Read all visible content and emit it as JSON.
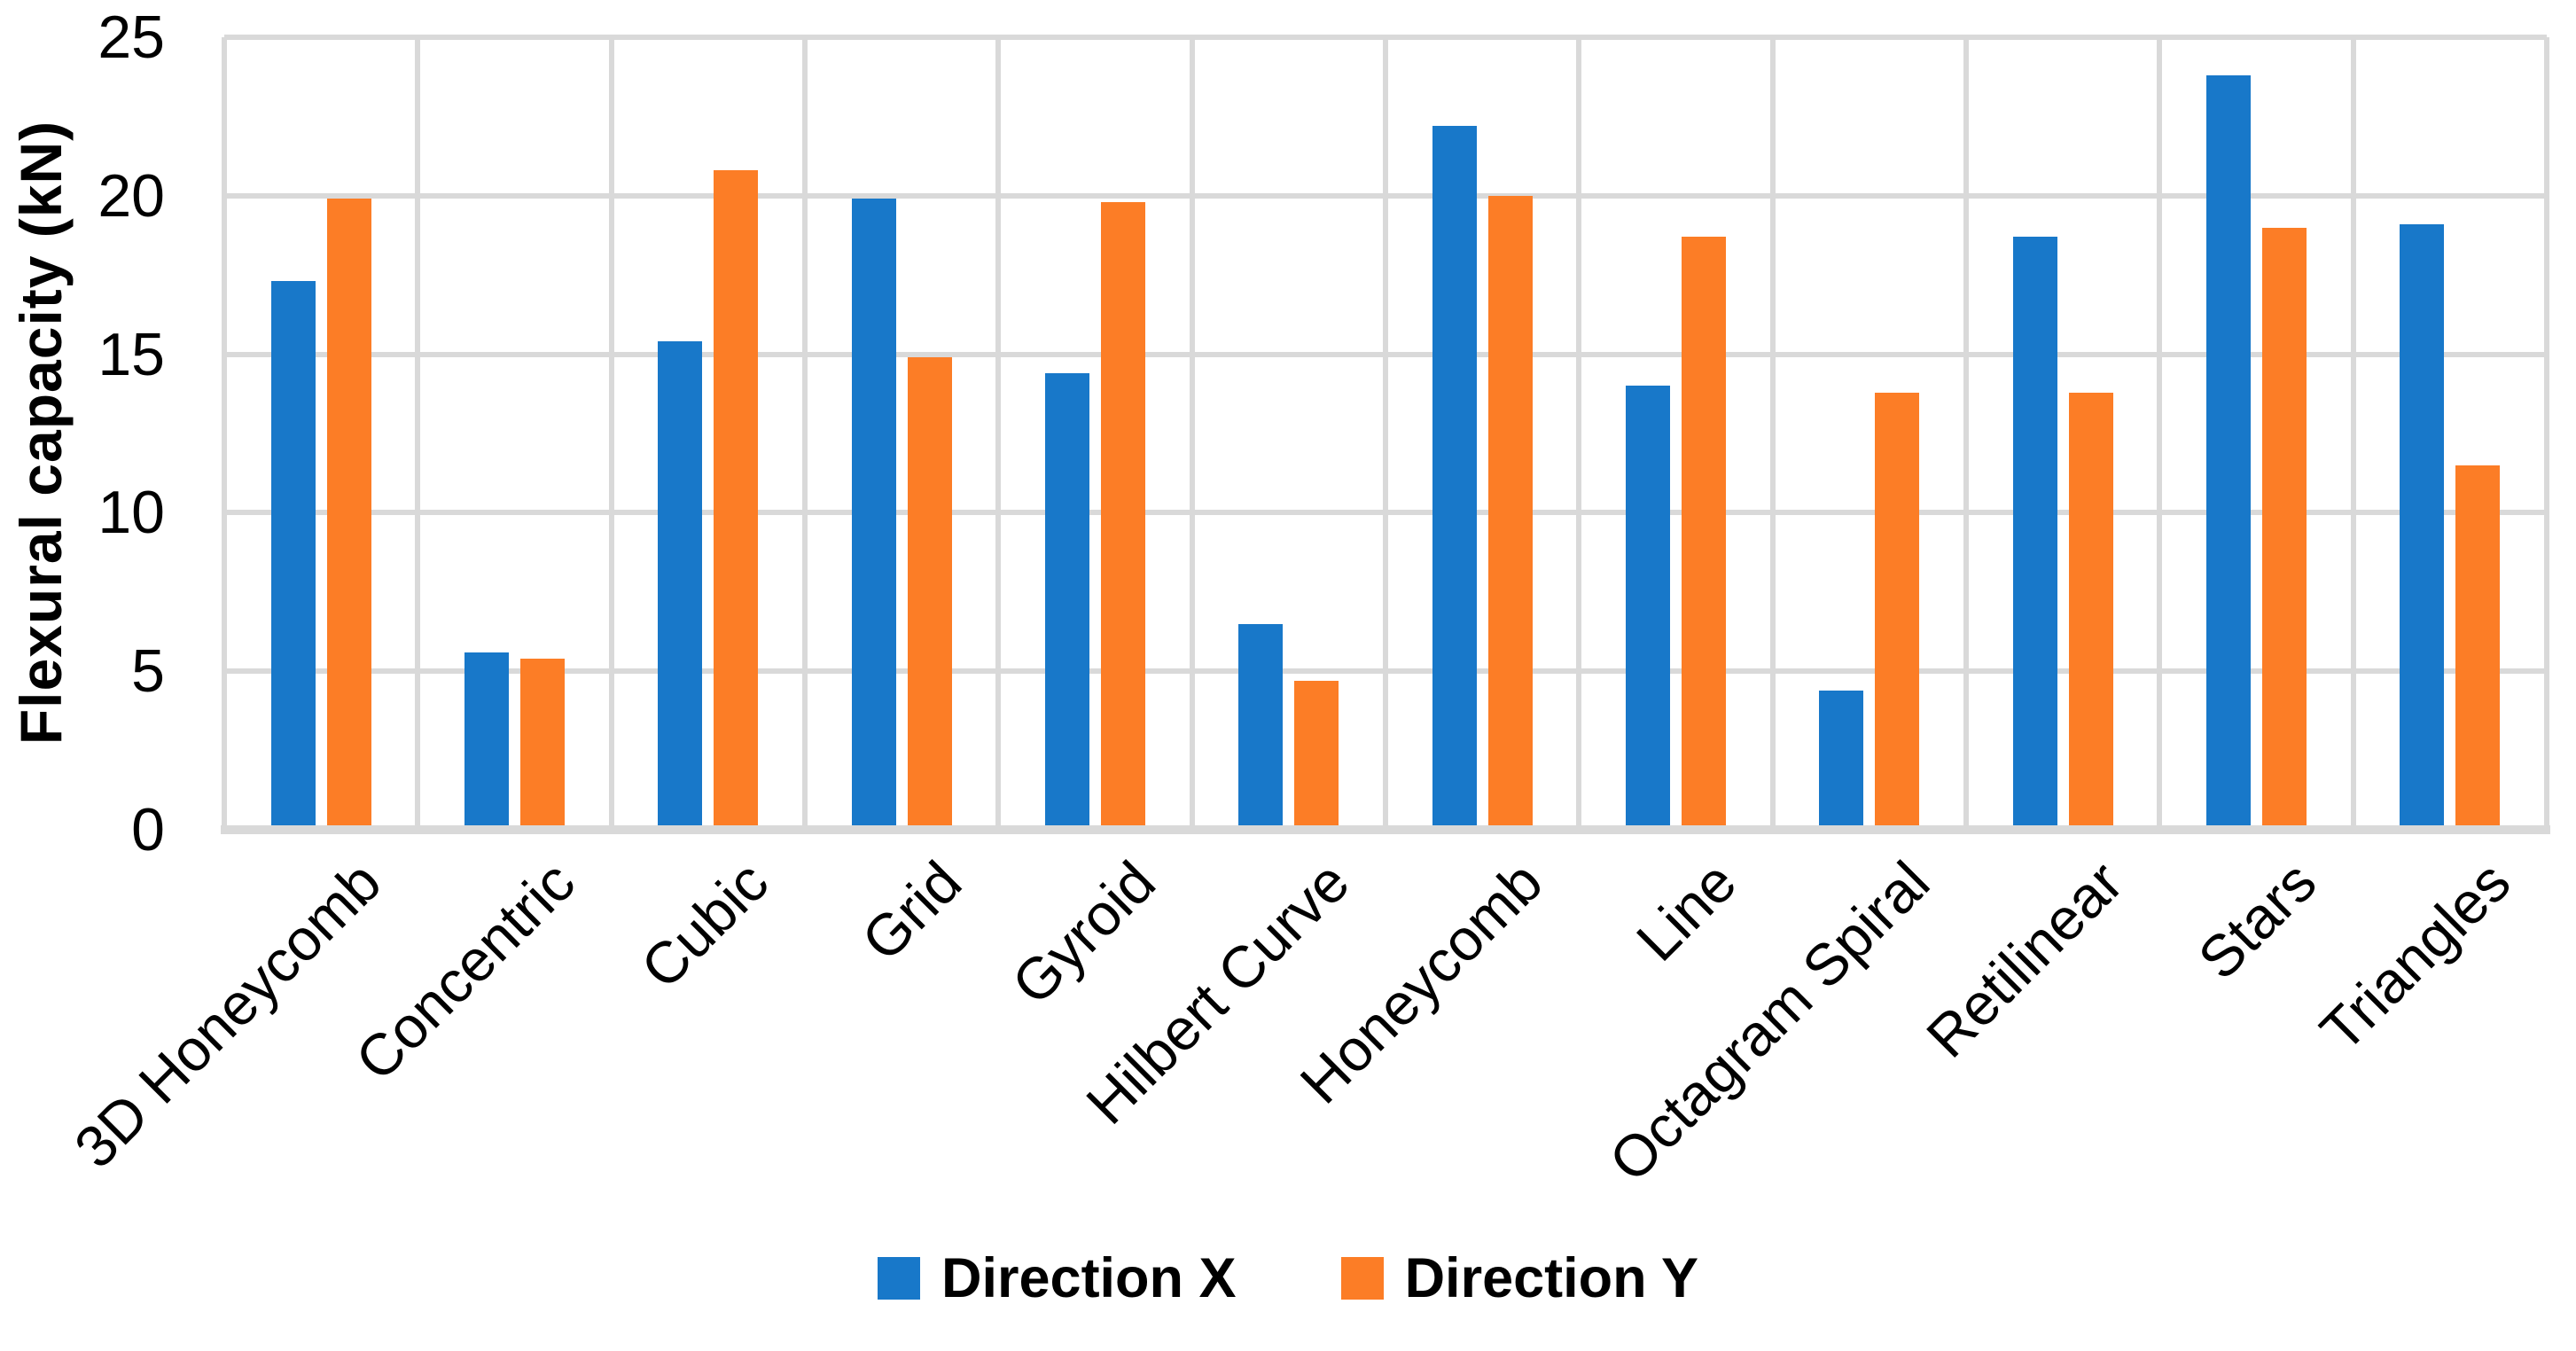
{
  "chart_data": {
    "type": "bar",
    "title": "",
    "xlabel": "",
    "ylabel": "Flexural capacity (kN)",
    "ylim": [
      0,
      25
    ],
    "yticks": [
      0,
      5,
      10,
      15,
      20,
      25
    ],
    "grid": true,
    "legend_position": "bottom",
    "categories": [
      "3D Honeycomb",
      "Concentric",
      "Cubic",
      "Grid",
      "Gyroid",
      "Hilbert Curve",
      "Honeycomb",
      "Line",
      "Octagram Spiral",
      "Retilinear",
      "Stars",
      "Triangles"
    ],
    "series": [
      {
        "name": "Direction X",
        "color": "#1878c9",
        "values": [
          17.3,
          5.6,
          15.4,
          19.9,
          14.4,
          6.5,
          22.2,
          14.0,
          4.4,
          18.7,
          23.8,
          19.1
        ]
      },
      {
        "name": "Direction Y",
        "color": "#fc7d26",
        "values": [
          19.9,
          5.4,
          20.8,
          14.9,
          19.8,
          4.7,
          20.0,
          18.7,
          13.8,
          13.8,
          19.0,
          11.5
        ]
      }
    ]
  },
  "colors": {
    "gridline": "#d9d9d9",
    "axis_line": "#d9d9d9",
    "text": "#000000",
    "background": "#ffffff"
  }
}
